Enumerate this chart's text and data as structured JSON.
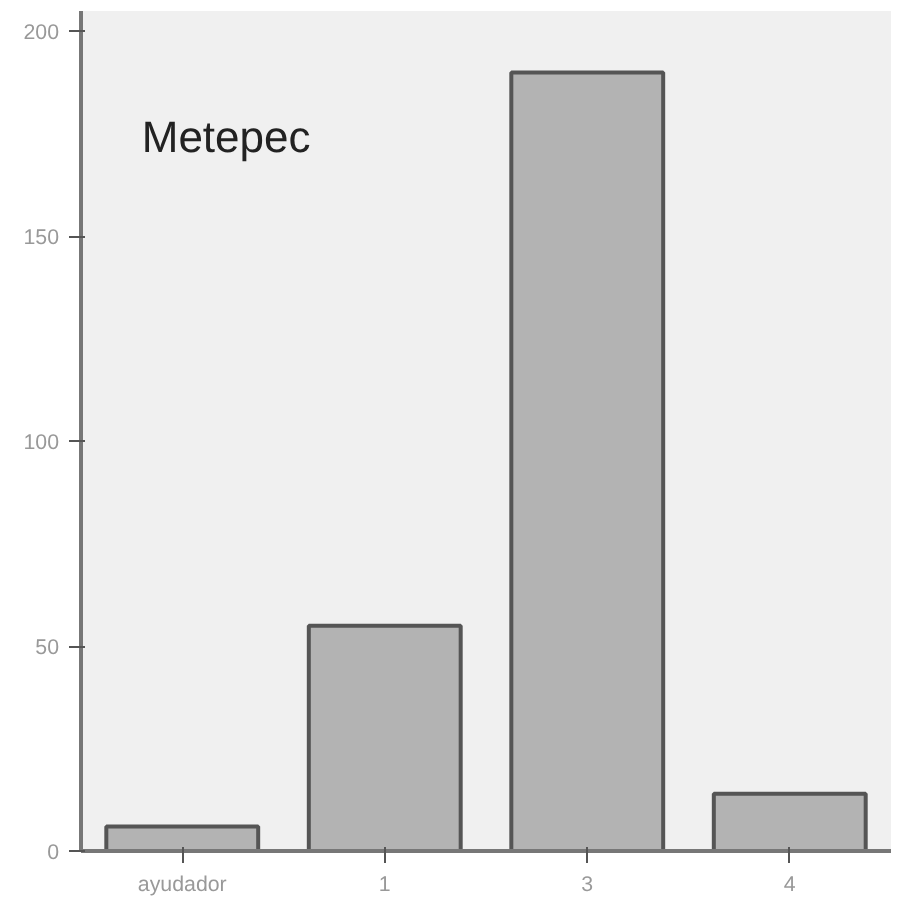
{
  "chart_data": {
    "type": "bar",
    "title": "Metepec",
    "categories": [
      "ayudador",
      "1",
      "3",
      "4"
    ],
    "values": [
      6,
      55,
      190,
      14
    ],
    "color": "#b3b3b3",
    "ylim": [
      0,
      205
    ],
    "yticks": [
      0,
      50,
      100,
      150,
      200
    ],
    "grid": false
  }
}
